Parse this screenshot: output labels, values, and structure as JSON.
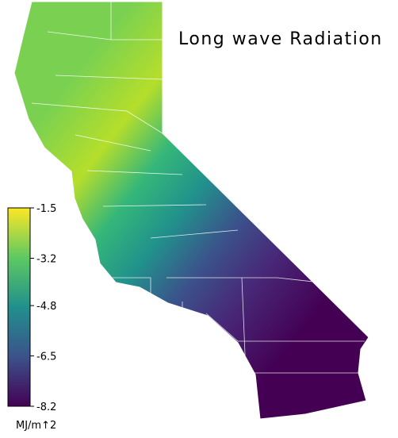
{
  "title": "Long wave Radiation",
  "colorbar": {
    "label": "MJ/m↑2",
    "lim": [
      -8.2,
      -1.5
    ],
    "ticks": [
      -1.5,
      -3.2,
      -4.8,
      -6.5,
      -8.2
    ],
    "colors": [
      "#440154",
      "#3b528b",
      "#21908c",
      "#5ec962",
      "#fde725"
    ]
  }
}
